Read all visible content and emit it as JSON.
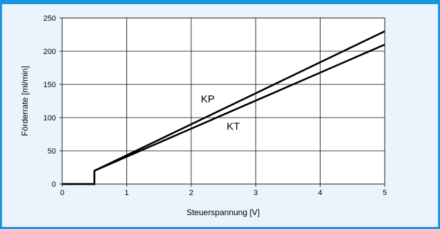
{
  "colors": {
    "frame_border": "#1a96de",
    "frame_background": "#ebf4fc",
    "plot_background": "#ffffff",
    "grid": "#000000",
    "series": "#000000"
  },
  "chart_data": {
    "type": "line",
    "xlabel": "Steuerspannung  [V]",
    "ylabel": "Förderrate [ml/min]",
    "xlim": [
      0,
      5
    ],
    "ylim": [
      0,
      250
    ],
    "xticks": [
      0,
      1,
      2,
      3,
      4,
      5
    ],
    "yticks": [
      0,
      50,
      100,
      150,
      200,
      250
    ],
    "grid": true,
    "legend": "none",
    "series": [
      {
        "name": "KP",
        "x": [
          0,
          0.5,
          0.5,
          5
        ],
        "y": [
          0,
          0,
          20,
          230
        ]
      },
      {
        "name": "KT",
        "x": [
          0,
          0.5,
          0.5,
          5
        ],
        "y": [
          0,
          0,
          20,
          210
        ]
      }
    ],
    "annotations": [
      {
        "text": "KP",
        "x": 2.15,
        "y": 123
      },
      {
        "text": "KT",
        "x": 2.55,
        "y": 82
      }
    ]
  }
}
